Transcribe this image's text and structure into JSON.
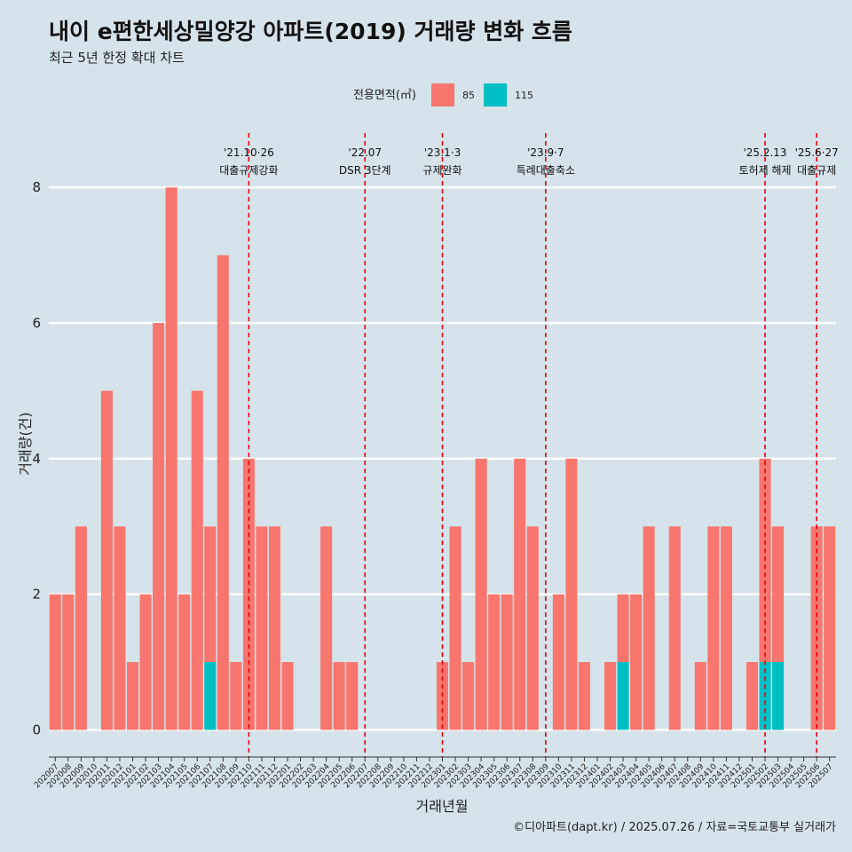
{
  "chart_data": {
    "type": "bar",
    "title": "내이 e편한세상밀양강 아파트(2019) 거래량 변화 흐름",
    "subtitle": "최근 5년 한정 확대 차트",
    "xlabel": "거래년월",
    "ylabel": "거래량(건)",
    "ylim": [
      -0.4,
      8.8
    ],
    "yticks": [
      0,
      2,
      4,
      6,
      8
    ],
    "grid": true,
    "legend": {
      "title": "전용면적(㎡)",
      "position": "top"
    },
    "categories": [
      "202007",
      "202008",
      "202009",
      "202010",
      "202011",
      "202012",
      "202101",
      "202102",
      "202103",
      "202104",
      "202105",
      "202106",
      "202107",
      "202108",
      "202109",
      "202110",
      "202111",
      "202112",
      "202201",
      "202202",
      "202203",
      "202204",
      "202205",
      "202206",
      "202207",
      "202208",
      "202209",
      "202210",
      "202211",
      "202212",
      "202301",
      "202302",
      "202303",
      "202304",
      "202305",
      "202306",
      "202307",
      "202308",
      "202309",
      "202310",
      "202311",
      "202312",
      "202401",
      "202402",
      "202403",
      "202404",
      "202405",
      "202406",
      "202407",
      "202408",
      "202409",
      "202410",
      "202411",
      "202412",
      "202501",
      "202502",
      "202503",
      "202504",
      "202505",
      "202506",
      "202507"
    ],
    "series": [
      {
        "name": "85",
        "color": "#f8766d",
        "values": [
          2,
          2,
          3,
          0,
          5,
          3,
          1,
          2,
          6,
          8,
          2,
          5,
          2,
          7,
          1,
          4,
          3,
          3,
          1,
          0,
          0,
          3,
          1,
          1,
          0,
          0,
          0,
          0,
          0,
          0,
          1,
          3,
          1,
          4,
          2,
          2,
          4,
          3,
          0,
          2,
          4,
          1,
          0,
          1,
          1,
          2,
          3,
          0,
          3,
          0,
          1,
          3,
          3,
          0,
          1,
          3,
          2,
          0,
          0,
          3,
          3
        ]
      },
      {
        "name": "115",
        "color": "#00bfc4",
        "values": [
          0,
          0,
          0,
          0,
          0,
          0,
          0,
          0,
          0,
          0,
          0,
          0,
          1,
          0,
          0,
          0,
          0,
          0,
          0,
          0,
          0,
          0,
          0,
          0,
          0,
          0,
          0,
          0,
          0,
          0,
          0,
          0,
          0,
          0,
          0,
          0,
          0,
          0,
          0,
          0,
          0,
          0,
          0,
          0,
          1,
          0,
          0,
          0,
          0,
          0,
          0,
          0,
          0,
          0,
          0,
          1,
          1,
          0,
          0,
          0,
          0
        ]
      }
    ],
    "events": [
      {
        "month": "202110",
        "date": "'21.10·26",
        "label": "대출규제강화"
      },
      {
        "month": "202207",
        "date": "'22.07",
        "label": "DSR 3단계"
      },
      {
        "month": "202301",
        "date": "'23.1·3",
        "label": "규제완화"
      },
      {
        "month": "202309",
        "date": "'23.9·7",
        "label": "특례대출축소"
      },
      {
        "month": "202502",
        "date": "'25.2.13",
        "label": "토허제 해제"
      },
      {
        "month": "202506",
        "date": "'25.6·27",
        "label": "대출규제"
      }
    ],
    "event_line_color": "#e8000b"
  },
  "caption": "©디아파트(dapt.kr) / 2025.07.26 / 자료=국토교통부 실거래가"
}
